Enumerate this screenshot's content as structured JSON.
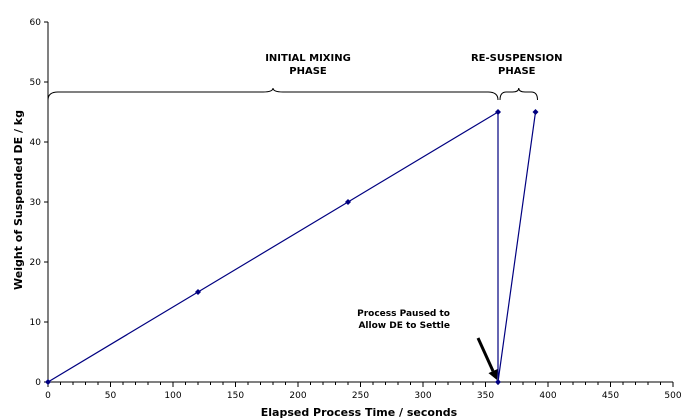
{
  "chart_data": {
    "type": "line",
    "title": "",
    "xlabel": "Elapsed Process Time / seconds",
    "ylabel": "Weight of Suspended DE / kg",
    "xlim": [
      0,
      500
    ],
    "ylim": [
      0,
      60
    ],
    "x_ticks": [
      0,
      50,
      100,
      150,
      200,
      250,
      300,
      350,
      400,
      450,
      500
    ],
    "y_ticks": [
      0,
      10,
      20,
      30,
      40,
      50,
      60
    ],
    "grid": false,
    "legend": "none",
    "series_color": "#000080",
    "series": [
      {
        "x": [
          0,
          120,
          240,
          360,
          360,
          390
        ],
        "y": [
          0,
          15,
          30,
          45,
          0,
          45
        ]
      }
    ],
    "annotations": {
      "phase_initial": {
        "lines": [
          "INITIAL MIXING",
          "PHASE"
        ],
        "x_start": 0,
        "x_end": 360
      },
      "phase_resuspension": {
        "lines": [
          "RE-SUSPENSION",
          "PHASE"
        ],
        "x_start": 360,
        "x_end": 390
      },
      "pause_note": {
        "lines": [
          "Process Paused to",
          "Allow DE to Settle"
        ],
        "target_x": 360,
        "target_y": 0
      }
    }
  }
}
